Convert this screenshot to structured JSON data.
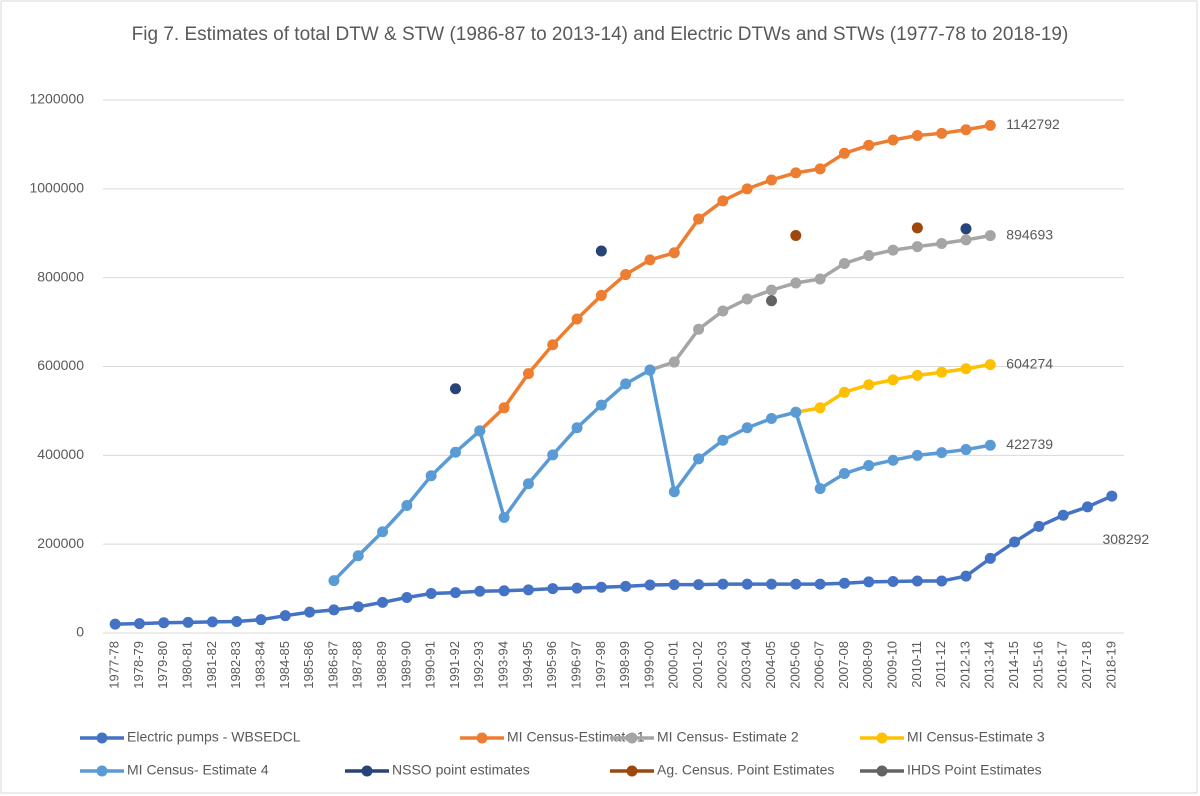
{
  "chart_data": {
    "type": "line",
    "title": "Fig 7. Estimates of total DTW & STW (1986-87 to 2013-14) and Electric DTWs and STWs (1977-78 to 2018-19)",
    "categories": [
      "1977-78",
      "1978-79",
      "1979-80",
      "1980-81",
      "1981-82",
      "1982-83",
      "1983-84",
      "1984-85",
      "1985-86",
      "1986-87",
      "1987-88",
      "1988-89",
      "1989-90",
      "1990-91",
      "1991-92",
      "1992-93",
      "1993-94",
      "1994-95",
      "1995-96",
      "1996-97",
      "1997-98",
      "1998-99",
      "1999-00",
      "2000-01",
      "2001-02",
      "2002-03",
      "2003-04",
      "2004-05",
      "2005-06",
      "2006-07",
      "2007-08",
      "2008-09",
      "2009-10",
      "2010-11",
      "2011-12",
      "2012-13",
      "2013-14",
      "2014-15",
      "2015-16",
      "2016-17",
      "2017-18",
      "2018-19"
    ],
    "ylim": [
      0,
      1200000
    ],
    "yticks": [
      0,
      200000,
      400000,
      600000,
      800000,
      1000000,
      1200000
    ],
    "grid": true,
    "series": [
      {
        "name": "Electric pumps - WBSEDCL",
        "color": "#4472c4",
        "show_line": true,
        "end_label": true,
        "values": [
          20000,
          21000,
          23000,
          24000,
          25000,
          26000,
          30000,
          39000,
          47000,
          52000,
          59000,
          69000,
          80000,
          89000,
          91000,
          94000,
          95000,
          97000,
          100000,
          101000,
          103000,
          105000,
          108000,
          109000,
          109000,
          110000,
          110000,
          110000,
          110000,
          110000,
          112000,
          115000,
          116000,
          117000,
          117000,
          128000,
          168000,
          205000,
          240000,
          265000,
          284000,
          308292
        ]
      },
      {
        "name": "MI Census-Estimate 1",
        "color": "#ed7d31",
        "show_line": true,
        "end_label": true,
        "values": [
          null,
          null,
          null,
          null,
          null,
          null,
          null,
          null,
          null,
          null,
          null,
          null,
          null,
          null,
          null,
          455000,
          507000,
          584000,
          649000,
          707000,
          760000,
          807000,
          840000,
          856000,
          932000,
          973000,
          1000000,
          1020000,
          1036000,
          1045000,
          1080000,
          1098000,
          1110000,
          1120000,
          1125000,
          1133000,
          1142792,
          null,
          null,
          null,
          null,
          null
        ]
      },
      {
        "name": "MI Census- Estimate 2",
        "color": "#a5a5a5",
        "show_line": true,
        "end_label": true,
        "values": [
          null,
          null,
          null,
          null,
          null,
          null,
          null,
          null,
          null,
          null,
          null,
          null,
          null,
          null,
          null,
          null,
          null,
          null,
          null,
          null,
          null,
          null,
          592000,
          610000,
          684000,
          725000,
          752000,
          772000,
          788000,
          797000,
          832000,
          850000,
          862000,
          870000,
          877000,
          885000,
          894693,
          null,
          null,
          null,
          null,
          null
        ]
      },
      {
        "name": "MI Census-Estimate 3",
        "color": "#ffc000",
        "show_line": true,
        "end_label": true,
        "values": [
          null,
          null,
          null,
          null,
          null,
          null,
          null,
          null,
          null,
          null,
          null,
          null,
          null,
          null,
          null,
          null,
          null,
          null,
          null,
          null,
          null,
          null,
          null,
          null,
          null,
          null,
          null,
          null,
          497000,
          507000,
          542000,
          559000,
          570000,
          580000,
          587000,
          595000,
          604274,
          null,
          null,
          null,
          null,
          null
        ]
      },
      {
        "name": "MI Census- Estimate 4",
        "color": "#5b9bd5",
        "show_line": true,
        "end_label": true,
        "values": [
          null,
          null,
          null,
          null,
          null,
          null,
          null,
          null,
          null,
          118000,
          174000,
          228000,
          287000,
          354000,
          407000,
          455000,
          260000,
          336000,
          401000,
          462000,
          513000,
          561000,
          592000,
          318000,
          392000,
          434000,
          462000,
          483000,
          497000,
          325000,
          359000,
          377000,
          389000,
          400000,
          406000,
          413000,
          422739,
          null,
          null,
          null,
          null,
          null
        ]
      },
      {
        "name": "NSSO point estimates",
        "color": "#264478",
        "show_line": false,
        "end_label": false,
        "values": [
          null,
          null,
          null,
          null,
          null,
          null,
          null,
          null,
          null,
          null,
          null,
          null,
          null,
          null,
          550000,
          null,
          null,
          null,
          null,
          null,
          860000,
          null,
          null,
          null,
          null,
          null,
          null,
          null,
          null,
          null,
          null,
          null,
          null,
          null,
          null,
          910000,
          null,
          null,
          null,
          null,
          null,
          null
        ]
      },
      {
        "name": "Ag. Census. Point  Estimates",
        "color": "#9e480e",
        "show_line": false,
        "end_label": false,
        "values": [
          null,
          null,
          null,
          null,
          null,
          null,
          null,
          null,
          null,
          null,
          null,
          null,
          null,
          null,
          null,
          null,
          null,
          null,
          null,
          null,
          null,
          null,
          null,
          null,
          null,
          null,
          null,
          null,
          895000,
          null,
          null,
          null,
          null,
          912000,
          null,
          null,
          null,
          null,
          null,
          null,
          null,
          null
        ]
      },
      {
        "name": "IHDS Point Estimates",
        "color": "#636363",
        "show_line": false,
        "end_label": false,
        "values": [
          null,
          null,
          null,
          null,
          null,
          null,
          null,
          null,
          null,
          null,
          null,
          null,
          null,
          null,
          null,
          null,
          null,
          null,
          null,
          null,
          null,
          null,
          null,
          null,
          null,
          null,
          null,
          748000,
          null,
          null,
          null,
          null,
          null,
          null,
          null,
          null,
          null,
          null,
          null,
          null,
          null,
          null
        ]
      }
    ]
  }
}
